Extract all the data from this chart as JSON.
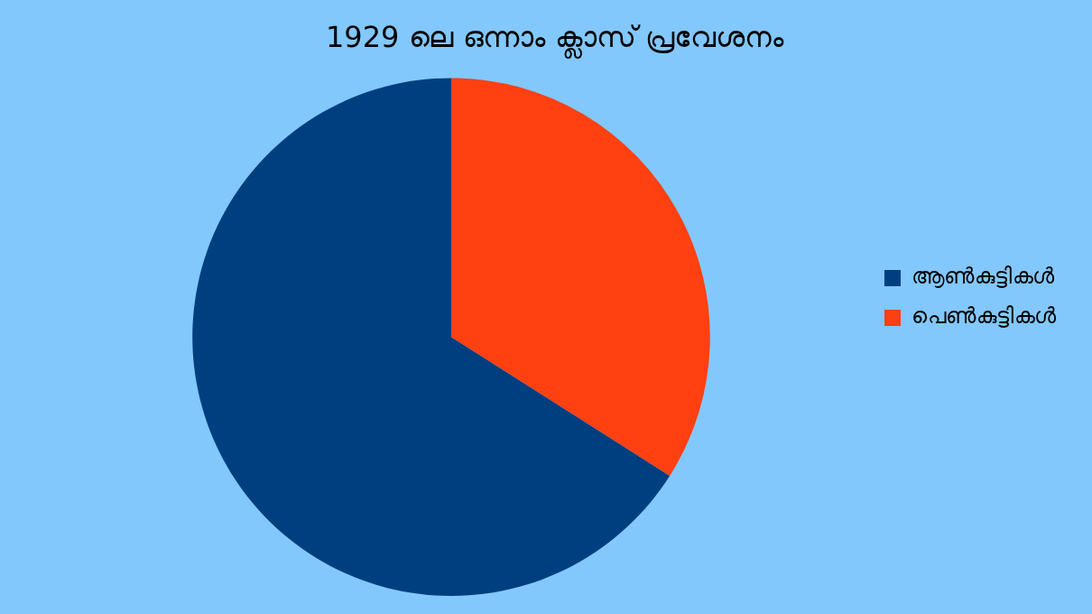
{
  "chart_data": {
    "type": "pie",
    "title": "1929 ലെ ഒന്നാം ക്ലാസ് പ്രവേശനം",
    "categories": [
      "ആൺകുട്ടികൾ",
      "പെൺകുട്ടികൾ"
    ],
    "values": [
      66,
      34
    ],
    "colors": [
      "#003f7f",
      "#ff4010"
    ],
    "legend": "right"
  }
}
